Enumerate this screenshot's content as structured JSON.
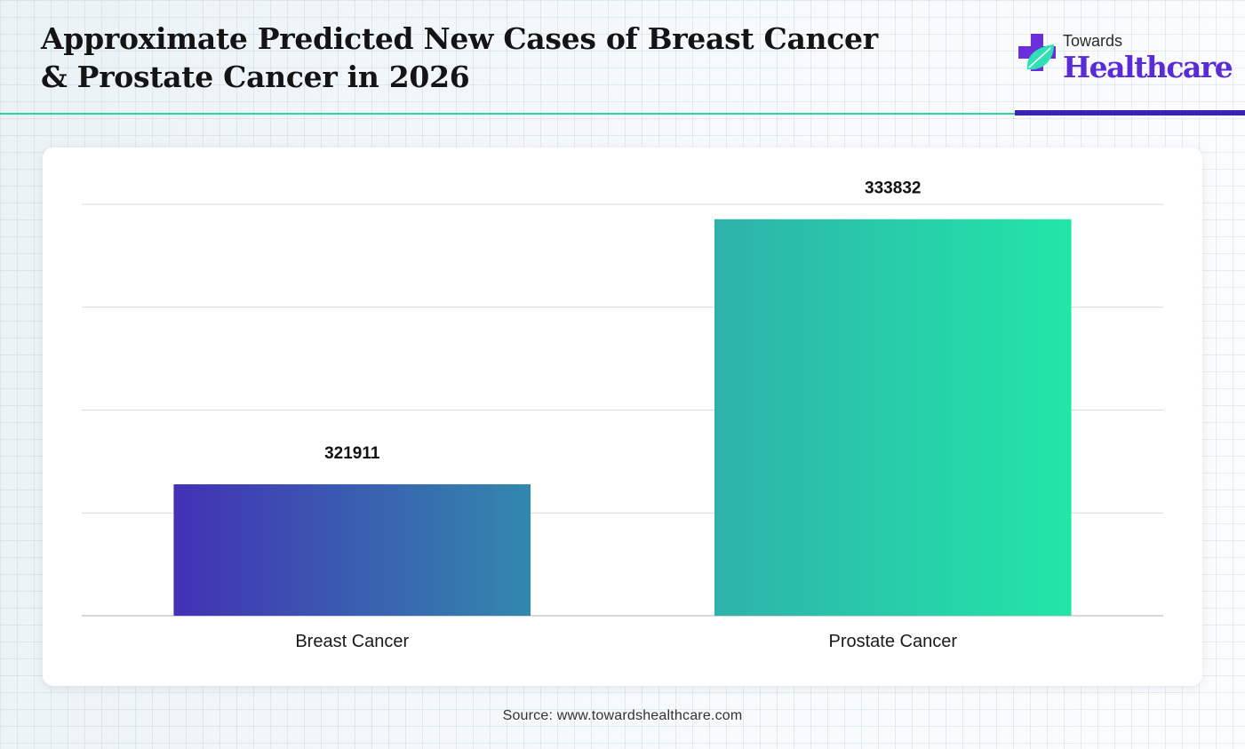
{
  "header": {
    "title_line1": "Approximate Predicted New Cases of Breast Cancer",
    "title_line2": "& Prostate Cancer in 2026"
  },
  "logo": {
    "word1": "Towards",
    "word2": "Healthcare",
    "icon": "medical-cross-leaf-icon"
  },
  "colors": {
    "bar1_start": "#4231b4",
    "bar1_end": "#3288ad",
    "bar2_start": "#2db2aa",
    "bar2_end": "#22e6a8",
    "accent_teal": "#2dd4a8",
    "accent_purple": "#3a23b3"
  },
  "chart_data": {
    "type": "bar",
    "title": "Approximate Predicted New Cases of Breast Cancer & Prostate Cancer in 2026",
    "categories": [
      "Breast Cancer",
      "Prostate Cancer"
    ],
    "values": [
      321911,
      333832
    ],
    "value_labels": [
      "321911",
      "333832"
    ],
    "ylim": [
      316000,
      334500
    ],
    "gridlines": true,
    "y_ticks_visible": false,
    "legend": "none"
  },
  "footer": {
    "source": "Source: www.towardshealthcare.com"
  }
}
